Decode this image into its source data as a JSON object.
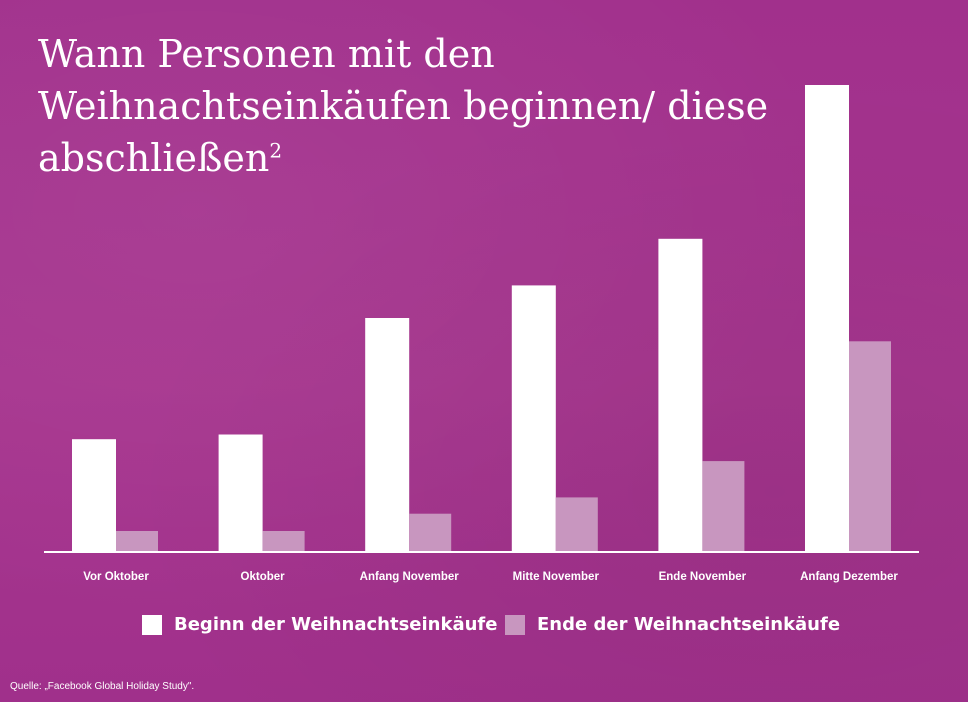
{
  "title": {
    "text": "Wann Personen mit den Weihnachtseinkäufen beginnen/ diese abschließen",
    "footnote": "2"
  },
  "source": "Quelle: „Facebook Global Holiday Study\".",
  "colors": {
    "background": "#a4338f",
    "series_begin": "#ffffff",
    "series_end": "#c896bf",
    "axis": "#ffffff"
  },
  "chart_data": {
    "type": "bar",
    "title": "Wann Personen mit den Weihnachtseinkäufen beginnen/ diese abschließen",
    "xlabel": "",
    "ylabel": "",
    "categories": [
      "Vor Oktober",
      "Oktober",
      "Anfang November",
      "Mitte November",
      "Ende November",
      "Anfang Dezember"
    ],
    "series": [
      {
        "name": "Beginn der Weihnachtseinkäufe",
        "values": [
          24,
          25,
          50,
          57,
          67,
          100
        ]
      },
      {
        "name": "Ende der Weihnachtseinkäufe",
        "values": [
          4.3,
          4.3,
          8,
          11.5,
          19.3,
          45
        ]
      }
    ],
    "ylim": [
      0,
      100
    ],
    "y_axis_visible": false,
    "grid": false,
    "legend_position": "bottom"
  }
}
